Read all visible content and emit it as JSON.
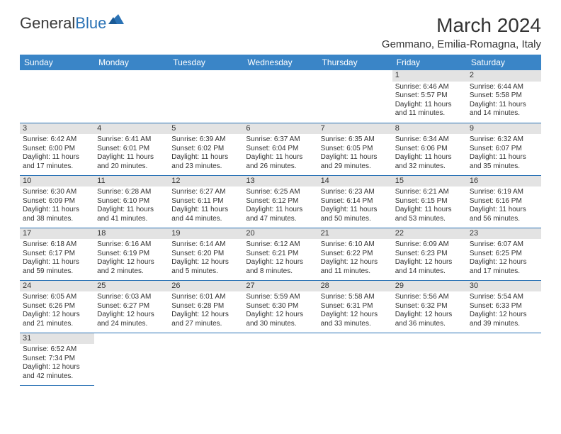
{
  "logo": {
    "text1": "General",
    "text2": "Blue"
  },
  "title": "March 2024",
  "location": "Gemmano, Emilia-Romagna, Italy",
  "colors": {
    "header_bg": "#3a85c7",
    "header_text": "#ffffff",
    "daynum_bg": "#e3e3e3",
    "row_border": "#2a72b5",
    "text": "#333333",
    "logo_gray": "#3a3a3a",
    "logo_blue": "#2a72b5"
  },
  "weekdays": [
    "Sunday",
    "Monday",
    "Tuesday",
    "Wednesday",
    "Thursday",
    "Friday",
    "Saturday"
  ],
  "weeks": [
    [
      {
        "blank": true
      },
      {
        "blank": true
      },
      {
        "blank": true
      },
      {
        "blank": true
      },
      {
        "blank": true
      },
      {
        "n": "1",
        "sr": "Sunrise: 6:46 AM",
        "ss": "Sunset: 5:57 PM",
        "dl": "Daylight: 11 hours and 11 minutes."
      },
      {
        "n": "2",
        "sr": "Sunrise: 6:44 AM",
        "ss": "Sunset: 5:58 PM",
        "dl": "Daylight: 11 hours and 14 minutes."
      }
    ],
    [
      {
        "n": "3",
        "sr": "Sunrise: 6:42 AM",
        "ss": "Sunset: 6:00 PM",
        "dl": "Daylight: 11 hours and 17 minutes."
      },
      {
        "n": "4",
        "sr": "Sunrise: 6:41 AM",
        "ss": "Sunset: 6:01 PM",
        "dl": "Daylight: 11 hours and 20 minutes."
      },
      {
        "n": "5",
        "sr": "Sunrise: 6:39 AM",
        "ss": "Sunset: 6:02 PM",
        "dl": "Daylight: 11 hours and 23 minutes."
      },
      {
        "n": "6",
        "sr": "Sunrise: 6:37 AM",
        "ss": "Sunset: 6:04 PM",
        "dl": "Daylight: 11 hours and 26 minutes."
      },
      {
        "n": "7",
        "sr": "Sunrise: 6:35 AM",
        "ss": "Sunset: 6:05 PM",
        "dl": "Daylight: 11 hours and 29 minutes."
      },
      {
        "n": "8",
        "sr": "Sunrise: 6:34 AM",
        "ss": "Sunset: 6:06 PM",
        "dl": "Daylight: 11 hours and 32 minutes."
      },
      {
        "n": "9",
        "sr": "Sunrise: 6:32 AM",
        "ss": "Sunset: 6:07 PM",
        "dl": "Daylight: 11 hours and 35 minutes."
      }
    ],
    [
      {
        "n": "10",
        "sr": "Sunrise: 6:30 AM",
        "ss": "Sunset: 6:09 PM",
        "dl": "Daylight: 11 hours and 38 minutes."
      },
      {
        "n": "11",
        "sr": "Sunrise: 6:28 AM",
        "ss": "Sunset: 6:10 PM",
        "dl": "Daylight: 11 hours and 41 minutes."
      },
      {
        "n": "12",
        "sr": "Sunrise: 6:27 AM",
        "ss": "Sunset: 6:11 PM",
        "dl": "Daylight: 11 hours and 44 minutes."
      },
      {
        "n": "13",
        "sr": "Sunrise: 6:25 AM",
        "ss": "Sunset: 6:12 PM",
        "dl": "Daylight: 11 hours and 47 minutes."
      },
      {
        "n": "14",
        "sr": "Sunrise: 6:23 AM",
        "ss": "Sunset: 6:14 PM",
        "dl": "Daylight: 11 hours and 50 minutes."
      },
      {
        "n": "15",
        "sr": "Sunrise: 6:21 AM",
        "ss": "Sunset: 6:15 PM",
        "dl": "Daylight: 11 hours and 53 minutes."
      },
      {
        "n": "16",
        "sr": "Sunrise: 6:19 AM",
        "ss": "Sunset: 6:16 PM",
        "dl": "Daylight: 11 hours and 56 minutes."
      }
    ],
    [
      {
        "n": "17",
        "sr": "Sunrise: 6:18 AM",
        "ss": "Sunset: 6:17 PM",
        "dl": "Daylight: 11 hours and 59 minutes."
      },
      {
        "n": "18",
        "sr": "Sunrise: 6:16 AM",
        "ss": "Sunset: 6:19 PM",
        "dl": "Daylight: 12 hours and 2 minutes."
      },
      {
        "n": "19",
        "sr": "Sunrise: 6:14 AM",
        "ss": "Sunset: 6:20 PM",
        "dl": "Daylight: 12 hours and 5 minutes."
      },
      {
        "n": "20",
        "sr": "Sunrise: 6:12 AM",
        "ss": "Sunset: 6:21 PM",
        "dl": "Daylight: 12 hours and 8 minutes."
      },
      {
        "n": "21",
        "sr": "Sunrise: 6:10 AM",
        "ss": "Sunset: 6:22 PM",
        "dl": "Daylight: 12 hours and 11 minutes."
      },
      {
        "n": "22",
        "sr": "Sunrise: 6:09 AM",
        "ss": "Sunset: 6:23 PM",
        "dl": "Daylight: 12 hours and 14 minutes."
      },
      {
        "n": "23",
        "sr": "Sunrise: 6:07 AM",
        "ss": "Sunset: 6:25 PM",
        "dl": "Daylight: 12 hours and 17 minutes."
      }
    ],
    [
      {
        "n": "24",
        "sr": "Sunrise: 6:05 AM",
        "ss": "Sunset: 6:26 PM",
        "dl": "Daylight: 12 hours and 21 minutes."
      },
      {
        "n": "25",
        "sr": "Sunrise: 6:03 AM",
        "ss": "Sunset: 6:27 PM",
        "dl": "Daylight: 12 hours and 24 minutes."
      },
      {
        "n": "26",
        "sr": "Sunrise: 6:01 AM",
        "ss": "Sunset: 6:28 PM",
        "dl": "Daylight: 12 hours and 27 minutes."
      },
      {
        "n": "27",
        "sr": "Sunrise: 5:59 AM",
        "ss": "Sunset: 6:30 PM",
        "dl": "Daylight: 12 hours and 30 minutes."
      },
      {
        "n": "28",
        "sr": "Sunrise: 5:58 AM",
        "ss": "Sunset: 6:31 PM",
        "dl": "Daylight: 12 hours and 33 minutes."
      },
      {
        "n": "29",
        "sr": "Sunrise: 5:56 AM",
        "ss": "Sunset: 6:32 PM",
        "dl": "Daylight: 12 hours and 36 minutes."
      },
      {
        "n": "30",
        "sr": "Sunrise: 5:54 AM",
        "ss": "Sunset: 6:33 PM",
        "dl": "Daylight: 12 hours and 39 minutes."
      }
    ],
    [
      {
        "n": "31",
        "sr": "Sunrise: 6:52 AM",
        "ss": "Sunset: 7:34 PM",
        "dl": "Daylight: 12 hours and 42 minutes."
      },
      {
        "trailing": true
      },
      {
        "trailing": true
      },
      {
        "trailing": true
      },
      {
        "trailing": true
      },
      {
        "trailing": true
      },
      {
        "trailing": true
      }
    ]
  ]
}
